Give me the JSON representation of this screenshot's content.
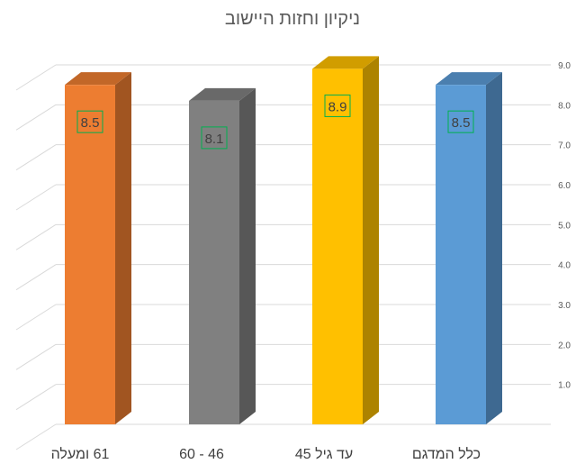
{
  "chart_data": {
    "type": "bar",
    "title": "ניקיון וחזות היישוב",
    "categories": [
      "61 ומעלה",
      "46 - 60",
      "עד גיל 45",
      "כלל המדגם"
    ],
    "values": [
      8.5,
      8.1,
      8.9,
      8.5
    ],
    "data_labels": [
      "8.5",
      "8.1",
      "8.9",
      "8.5"
    ],
    "colors": [
      "#ED7D31",
      "#808080",
      "#FFC000",
      "#5B9BD5"
    ],
    "yticks": [
      "1.0",
      "2.0",
      "3.0",
      "4.0",
      "5.0",
      "6.0",
      "7.0",
      "8.0",
      "9.0"
    ],
    "ylim": [
      0,
      9
    ],
    "y_axis_side": "right",
    "grid": true,
    "style": "3d-column",
    "label_box_color": "#00B050"
  }
}
